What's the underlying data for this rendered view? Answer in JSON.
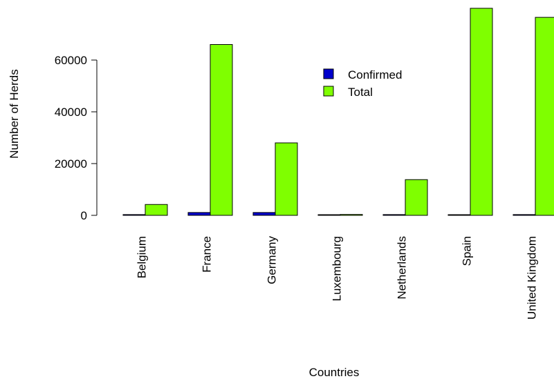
{
  "chart_data": {
    "type": "bar",
    "title": "",
    "xlabel": "Countries",
    "ylabel": "Number of Herds",
    "categories": [
      "Belgium",
      "France",
      "Germany",
      "Luxembourg",
      "Netherlands",
      "Spain",
      "United Kingdom"
    ],
    "series": [
      {
        "name": "Confirmed",
        "color": "#0000CC",
        "values": [
          300,
          1100,
          1100,
          50,
          300,
          50,
          300
        ]
      },
      {
        "name": "Total",
        "color": "#7FFF00",
        "values": [
          4200,
          66000,
          28000,
          350,
          13800,
          80000,
          76500
        ]
      }
    ],
    "yticks": [
      0,
      20000,
      40000,
      60000
    ],
    "ylim": [
      0,
      80000
    ],
    "legend_position": "top-center",
    "grid": false
  }
}
